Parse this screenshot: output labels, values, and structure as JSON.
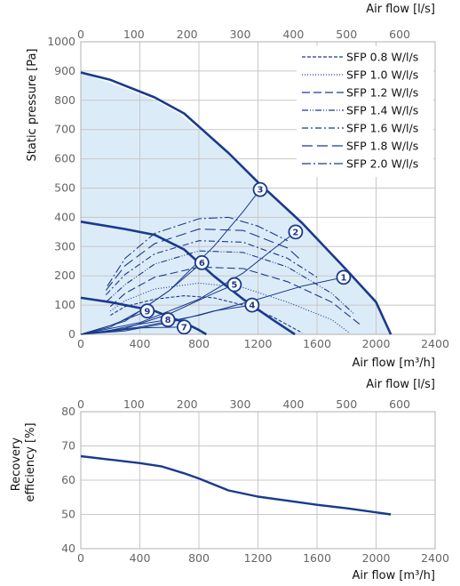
{
  "chart_data": [
    {
      "type": "line",
      "ylabel": "Static pressure [Pa]",
      "xlabel": "Air flow [m³/h]",
      "x2label": "Air flow [l/s]",
      "xlim": [
        0,
        2400
      ],
      "ylim": [
        0,
        1000
      ],
      "x2lim": [
        0,
        666.7
      ],
      "xticks": [
        "0",
        "400",
        "800",
        "1200",
        "1600",
        "2000",
        "2400"
      ],
      "x2ticks": [
        "0",
        "100",
        "200",
        "300",
        "400",
        "500",
        "600"
      ],
      "yticks": [
        "0",
        "100",
        "200",
        "300",
        "400",
        "500",
        "600",
        "700",
        "800",
        "900",
        "1000"
      ],
      "grid": true,
      "legend_position": "top-right",
      "colors": {
        "curve": "#1a3a8c",
        "area": "#dcebf8",
        "grid": "#c8c8c8"
      },
      "area": [
        [
          0,
          895
        ],
        [
          300,
          840
        ],
        [
          500,
          800
        ],
        [
          650,
          760
        ],
        [
          1000,
          620
        ],
        [
          1200,
          520
        ],
        [
          1500,
          380
        ],
        [
          1800,
          220
        ],
        [
          2000,
          120
        ],
        [
          2100,
          0
        ],
        [
          0,
          0
        ]
      ],
      "fan_curves": [
        {
          "x": [
            0,
            200,
            500,
            700,
            1000,
            1200,
            1500,
            1800,
            2000,
            2100
          ],
          "y": [
            895,
            870,
            810,
            755,
            620,
            520,
            380,
            220,
            110,
            0
          ]
        },
        {
          "x": [
            0,
            300,
            500,
            700,
            900,
            1100,
            1300,
            1450
          ],
          "y": [
            385,
            360,
            340,
            290,
            200,
            120,
            50,
            0
          ]
        },
        {
          "x": [
            0,
            200,
            400,
            500,
            600,
            700,
            800,
            850
          ],
          "y": [
            125,
            110,
            90,
            80,
            60,
            40,
            15,
            0
          ]
        }
      ],
      "system_curves": [
        {
          "label": "1",
          "x": [
            0,
            400,
            800,
            1200,
            1500,
            1780
          ],
          "y": [
            0,
            25,
            65,
            120,
            165,
            195
          ]
        },
        {
          "label": "2",
          "x": [
            0,
            400,
            800,
            1100,
            1300,
            1455
          ],
          "y": [
            0,
            40,
            120,
            210,
            290,
            350
          ]
        },
        {
          "label": "3",
          "x": [
            0,
            300,
            600,
            900,
            1100,
            1215
          ],
          "y": [
            0,
            45,
            150,
            300,
            420,
            495
          ]
        },
        {
          "label": "4",
          "x": [
            0,
            300,
            600,
            900,
            1160
          ],
          "y": [
            0,
            12,
            40,
            80,
            100
          ]
        },
        {
          "label": "5",
          "x": [
            0,
            300,
            600,
            900,
            1040
          ],
          "y": [
            0,
            20,
            70,
            140,
            170
          ]
        },
        {
          "label": "6",
          "x": [
            0,
            200,
            400,
            600,
            820
          ],
          "y": [
            0,
            25,
            80,
            150,
            245
          ]
        },
        {
          "label": "7",
          "x": [
            0,
            200,
            400,
            700
          ],
          "y": [
            0,
            10,
            22,
            25
          ]
        },
        {
          "label": "8",
          "x": [
            0,
            200,
            400,
            590
          ],
          "y": [
            0,
            14,
            35,
            50
          ]
        },
        {
          "label": "9",
          "x": [
            0,
            200,
            350,
            450
          ],
          "y": [
            0,
            30,
            60,
            80
          ]
        }
      ],
      "markers": [
        {
          "label": "1",
          "x": 1780,
          "y": 195
        },
        {
          "label": "2",
          "x": 1455,
          "y": 350
        },
        {
          "label": "3",
          "x": 1215,
          "y": 495
        },
        {
          "label": "4",
          "x": 1160,
          "y": 100
        },
        {
          "label": "5",
          "x": 1040,
          "y": 170
        },
        {
          "label": "6",
          "x": 820,
          "y": 245
        },
        {
          "label": "7",
          "x": 700,
          "y": 25
        },
        {
          "label": "8",
          "x": 590,
          "y": 50
        },
        {
          "label": "9",
          "x": 450,
          "y": 80
        }
      ],
      "sfp_series": [
        {
          "name": "SFP 0.8 W/l/s",
          "dash": "4,2",
          "x": [
            200,
            300,
            500,
            700,
            900,
            1100,
            1300,
            1500
          ],
          "y": [
            65,
            95,
            120,
            132,
            125,
            100,
            60,
            5
          ]
        },
        {
          "name": "SFP 1.0 W/l/s",
          "dash": "1,2",
          "x": [
            200,
            300,
            500,
            800,
            1100,
            1400,
            1700,
            1820
          ],
          "y": [
            80,
            115,
            155,
            175,
            160,
            110,
            50,
            5
          ]
        },
        {
          "name": "SFP 1.2 W/l/s",
          "dash": "9,4",
          "x": [
            200,
            300,
            500,
            800,
            1100,
            1400,
            1700,
            1900
          ],
          "y": [
            95,
            140,
            195,
            230,
            225,
            180,
            110,
            30
          ]
        },
        {
          "name": "SFP 1.4 W/l/s",
          "dash": "7,2,1,2,1,2",
          "x": [
            180,
            300,
            500,
            800,
            1100,
            1400,
            1700,
            1850
          ],
          "y": [
            115,
            170,
            240,
            285,
            280,
            230,
            140,
            70
          ]
        },
        {
          "name": "SFP 1.6 W/l/s",
          "dash": "7,3,2,3",
          "x": [
            170,
            300,
            500,
            800,
            1100,
            1400,
            1600
          ],
          "y": [
            135,
            205,
            275,
            320,
            315,
            260,
            195
          ]
        },
        {
          "name": "SFP 1.8 W/l/s",
          "dash": "12,5",
          "x": [
            170,
            300,
            500,
            800,
            1100,
            1400,
            1500
          ],
          "y": [
            150,
            235,
            310,
            360,
            355,
            295,
            250
          ]
        },
        {
          "name": "SFP 2.0 W/l/s",
          "dash": "10,3,2,3",
          "x": [
            180,
            300,
            500,
            800,
            1000,
            1200,
            1400
          ],
          "y": [
            165,
            260,
            345,
            395,
            400,
            370,
            320
          ]
        }
      ]
    },
    {
      "type": "line",
      "ylabel": "Recovery efficiency [%]",
      "xlabel": "Air flow [m³/h]",
      "x2label": "Air flow [l/s]",
      "xlim": [
        0,
        2400
      ],
      "ylim": [
        40,
        80
      ],
      "xticks": [
        "0",
        "400",
        "800",
        "1200",
        "1600",
        "2000",
        "2400"
      ],
      "x2ticks": [
        "0",
        "100",
        "200",
        "300",
        "400",
        "500",
        "600"
      ],
      "yticks": [
        "40",
        "50",
        "60",
        "70",
        "80"
      ],
      "grid": true,
      "series": [
        {
          "x": [
            0,
            200,
            400,
            550,
            700,
            800,
            1000,
            1200,
            1400,
            1600,
            1800,
            2000,
            2100
          ],
          "y": [
            67,
            66,
            65,
            64,
            62,
            60.5,
            57,
            55.2,
            54,
            52.8,
            51.8,
            50.6,
            50
          ]
        }
      ]
    }
  ]
}
